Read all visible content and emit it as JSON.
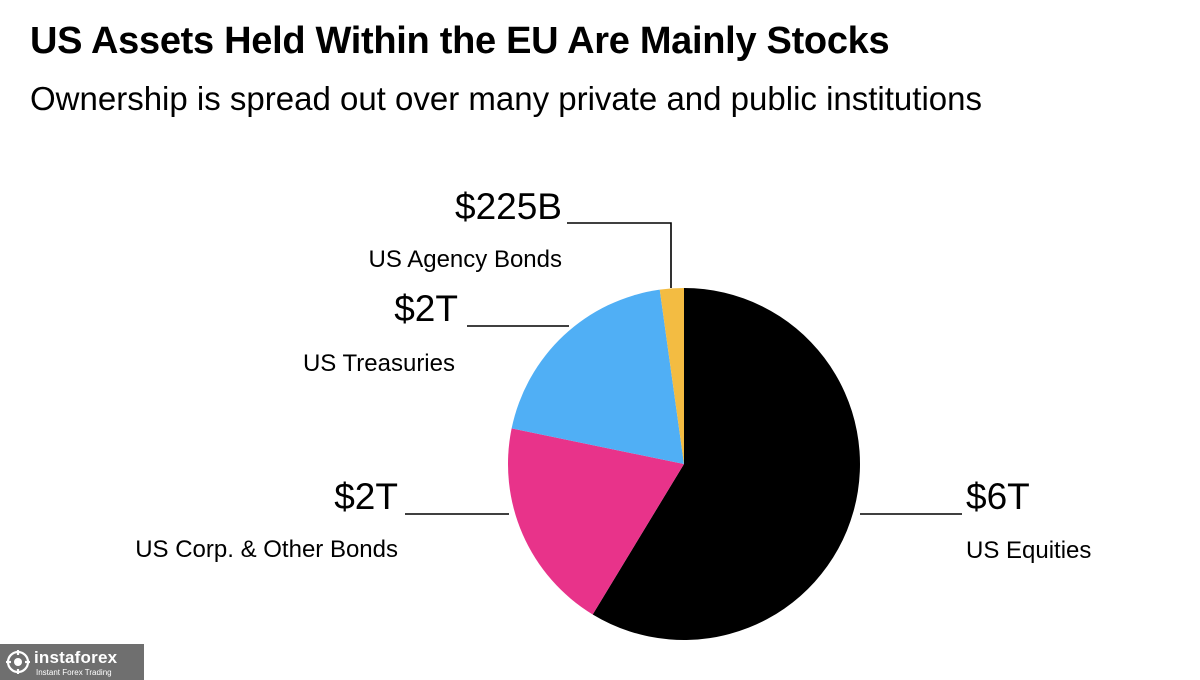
{
  "header": {
    "title": "US Assets Held Within the EU Are Mainly Stocks",
    "subtitle": "Ownership is spread out over many private and public institutions"
  },
  "chart_data": {
    "type": "pie",
    "title": "US Assets Held Within the EU Are Mainly Stocks",
    "subtitle": "Ownership is spread out over many private and public institutions",
    "unit": "USD billions",
    "start": "12 o'clock, clockwise",
    "slices": [
      {
        "label": "US Equities",
        "display": "$6T",
        "value": 6000,
        "color": "#000000"
      },
      {
        "label": "US Corp. & Other Bonds",
        "display": "$2T",
        "value": 2000,
        "color": "#e8338a"
      },
      {
        "label": "US Treasuries",
        "display": "$2T",
        "value": 2000,
        "color": "#50aff5"
      },
      {
        "label": "US Agency Bonds",
        "display": "$225B",
        "value": 225,
        "color": "#f3bc42"
      }
    ]
  },
  "watermark": {
    "name": "instaforex",
    "tagline": "Instant Forex Trading"
  }
}
